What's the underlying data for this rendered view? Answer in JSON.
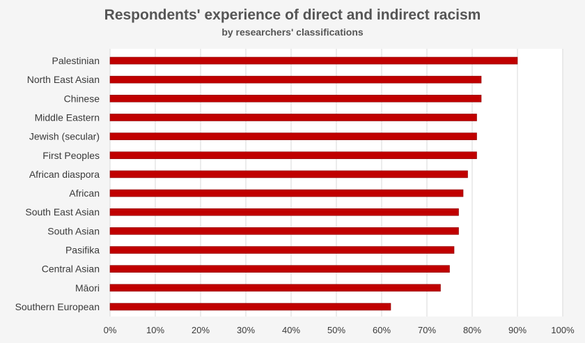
{
  "chart_data": {
    "type": "bar",
    "orientation": "horizontal",
    "title": "Respondents' experience of direct and indirect racism",
    "subtitle": "by researchers' classifications",
    "categories": [
      "Palestinian",
      "North East Asian",
      "Chinese",
      "Middle Eastern",
      "Jewish (secular)",
      "First Peoples",
      "African diaspora",
      "African",
      "South East Asian",
      "South  Asian",
      "Pasifika",
      "Central Asian",
      "Māori",
      "Southern European"
    ],
    "values": [
      90,
      82,
      82,
      81,
      81,
      81,
      79,
      78,
      77,
      77,
      76,
      75,
      73,
      62
    ],
    "xlim": [
      0,
      100
    ],
    "x_ticks": [
      "0%",
      "10%",
      "20%",
      "30%",
      "40%",
      "50%",
      "60%",
      "70%",
      "80%",
      "90%",
      "100%"
    ],
    "grid": "vertical",
    "legend": "none",
    "bar_color": "#c00000",
    "plot_background": "#ffffff",
    "page_background": "#f5f5f5"
  }
}
